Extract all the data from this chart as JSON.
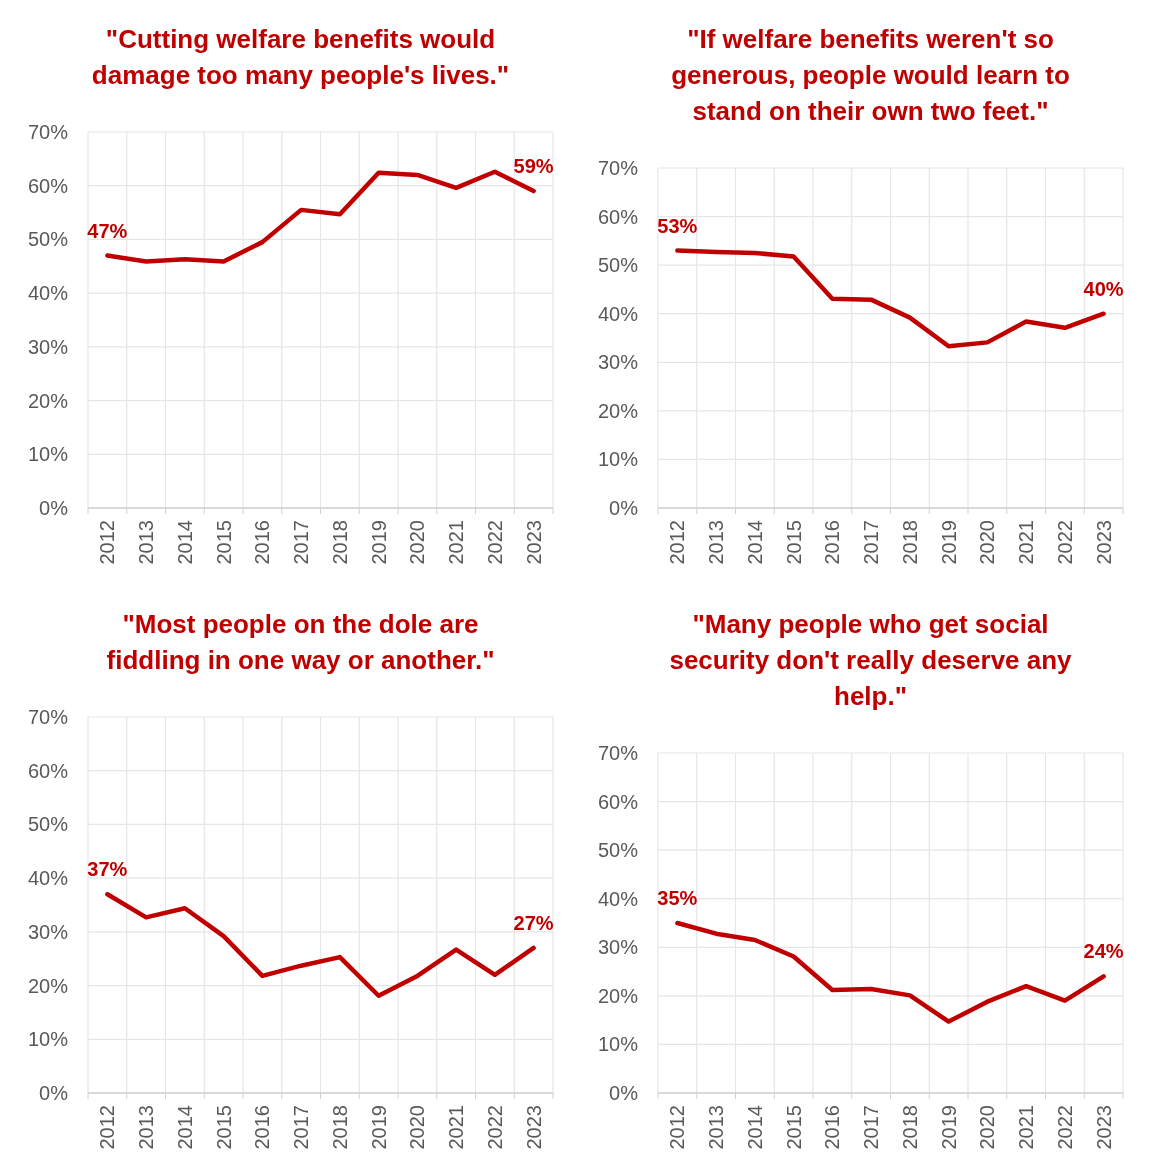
{
  "chart_data": [
    {
      "type": "line",
      "title": "\"Cutting welfare benefits would damage too many people's lives.\"",
      "categories": [
        "2012",
        "2013",
        "2014",
        "2015",
        "2016",
        "2017",
        "2018",
        "2019",
        "2020",
        "2021",
        "2022",
        "2023"
      ],
      "series": [
        {
          "color": "#c00000",
          "values": [
            47,
            45.9,
            46.3,
            45.9,
            49.5,
            55.5,
            54.7,
            62.4,
            62.0,
            59.6,
            62.6,
            59
          ],
          "value_labels": [
            "47%",
            null,
            null,
            null,
            null,
            null,
            null,
            null,
            null,
            null,
            null,
            "59%"
          ]
        }
      ],
      "ylim": [
        0,
        70
      ],
      "yticks": [
        {
          "value": 0,
          "label": "0%"
        },
        {
          "value": 10,
          "label": "10%"
        },
        {
          "value": 20,
          "label": "20%"
        },
        {
          "value": 30,
          "label": "30%"
        },
        {
          "value": 40,
          "label": "40%"
        },
        {
          "value": 50,
          "label": "50%"
        },
        {
          "value": 60,
          "label": "60%"
        },
        {
          "value": 70,
          "label": "70%"
        }
      ],
      "grid": true
    },
    {
      "type": "line",
      "title": "\"If welfare benefits weren't so generous, people would learn to stand on their own two feet.\"",
      "categories": [
        "2012",
        "2013",
        "2014",
        "2015",
        "2016",
        "2017",
        "2018",
        "2019",
        "2020",
        "2021",
        "2022",
        "2023"
      ],
      "series": [
        {
          "color": "#c00000",
          "values": [
            53,
            52.7,
            52.5,
            51.8,
            43.1,
            42.9,
            39.2,
            33.3,
            34.1,
            38.4,
            37.1,
            40
          ],
          "value_labels": [
            "53%",
            null,
            null,
            null,
            null,
            null,
            null,
            null,
            null,
            null,
            null,
            "40%"
          ]
        }
      ],
      "ylim": [
        0,
        70
      ],
      "yticks": [
        {
          "value": 0,
          "label": "0%"
        },
        {
          "value": 10,
          "label": "10%"
        },
        {
          "value": 20,
          "label": "20%"
        },
        {
          "value": 30,
          "label": "30%"
        },
        {
          "value": 40,
          "label": "40%"
        },
        {
          "value": 50,
          "label": "50%"
        },
        {
          "value": 60,
          "label": "60%"
        },
        {
          "value": 70,
          "label": "70%"
        }
      ],
      "grid": true
    },
    {
      "type": "line",
      "title": "\"Most people on the dole are fiddling in one way or another.\"",
      "categories": [
        "2012",
        "2013",
        "2014",
        "2015",
        "2016",
        "2017",
        "2018",
        "2019",
        "2020",
        "2021",
        "2022",
        "2023"
      ],
      "series": [
        {
          "color": "#c00000",
          "values": [
            37,
            32.7,
            34.4,
            29.2,
            21.8,
            23.7,
            25.3,
            18.1,
            21.8,
            26.7,
            22.0,
            27
          ],
          "value_labels": [
            "37%",
            null,
            null,
            null,
            null,
            null,
            null,
            null,
            null,
            null,
            null,
            "27%"
          ]
        }
      ],
      "ylim": [
        0,
        70
      ],
      "yticks": [
        {
          "value": 0,
          "label": "0%"
        },
        {
          "value": 10,
          "label": "10%"
        },
        {
          "value": 20,
          "label": "20%"
        },
        {
          "value": 30,
          "label": "30%"
        },
        {
          "value": 40,
          "label": "40%"
        },
        {
          "value": 50,
          "label": "50%"
        },
        {
          "value": 60,
          "label": "60%"
        },
        {
          "value": 70,
          "label": "70%"
        }
      ],
      "grid": true
    },
    {
      "type": "line",
      "title": "\"Many people who get social security don't really deserve any help.\"",
      "categories": [
        "2012",
        "2013",
        "2014",
        "2015",
        "2016",
        "2017",
        "2018",
        "2019",
        "2020",
        "2021",
        "2022",
        "2023"
      ],
      "series": [
        {
          "color": "#c00000",
          "values": [
            35,
            32.8,
            31.5,
            28.1,
            21.2,
            21.4,
            20.1,
            14.7,
            18.8,
            22.0,
            19.0,
            24
          ],
          "value_labels": [
            "35%",
            null,
            null,
            null,
            null,
            null,
            null,
            null,
            null,
            null,
            null,
            "24%"
          ]
        }
      ],
      "ylim": [
        0,
        70
      ],
      "yticks": [
        {
          "value": 0,
          "label": "0%"
        },
        {
          "value": 10,
          "label": "10%"
        },
        {
          "value": 20,
          "label": "20%"
        },
        {
          "value": 30,
          "label": "30%"
        },
        {
          "value": 40,
          "label": "40%"
        },
        {
          "value": 50,
          "label": "50%"
        },
        {
          "value": 60,
          "label": "60%"
        },
        {
          "value": 70,
          "label": "70%"
        }
      ],
      "grid": true
    }
  ]
}
